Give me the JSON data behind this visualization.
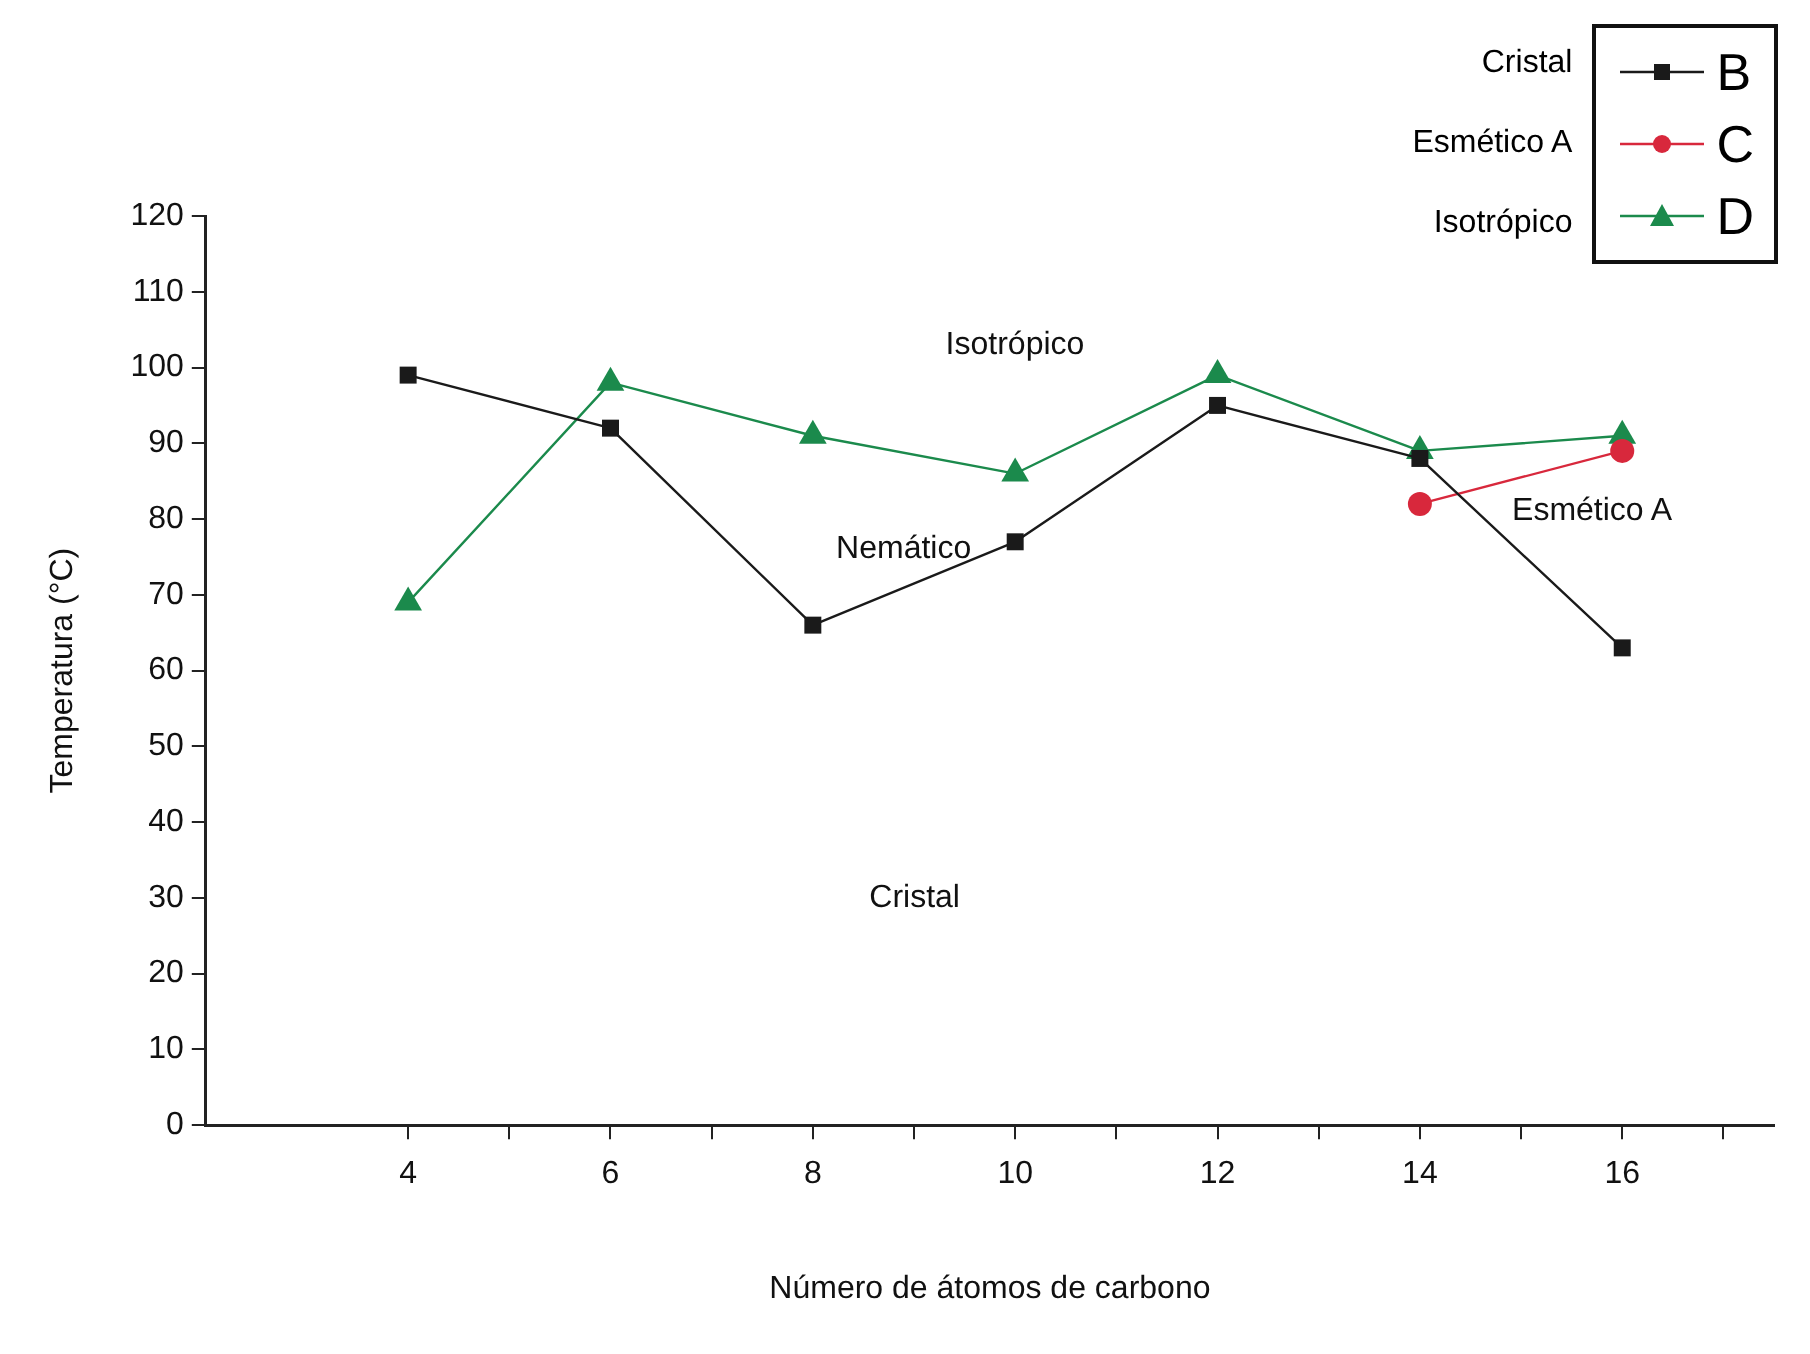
{
  "chart_data": {
    "type": "line",
    "xlabel": "Número de átomos de carbono",
    "ylabel": "Temperatura (°C)",
    "xlim": [
      2,
      17.5
    ],
    "xticks": [
      4,
      {
        "value": 5,
        "label": null
      },
      6,
      {
        "value": 7,
        "label": null
      },
      8,
      {
        "value": 9,
        "label": null
      },
      10,
      {
        "value": 11,
        "label": null
      },
      12,
      {
        "value": 13,
        "label": null
      },
      14,
      {
        "value": 15,
        "label": null
      },
      16,
      {
        "value": 17,
        "label": null
      }
    ],
    "ylim": [
      0,
      120
    ],
    "yticks": [
      0,
      10,
      20,
      30,
      40,
      50,
      60,
      70,
      80,
      90,
      100,
      110,
      120
    ],
    "legend": "top right",
    "series": [
      {
        "name": "B",
        "color": "#1a1a1a",
        "marker": "square",
        "x": [
          4,
          6,
          8,
          10,
          12,
          14,
          16
        ],
        "values": [
          99,
          92,
          66,
          77,
          95,
          88,
          63
        ]
      },
      {
        "name": "C",
        "color": "#d8283c",
        "marker": "circle",
        "x": [
          14,
          16
        ],
        "values": [
          82,
          89
        ]
      },
      {
        "name": "D",
        "color": "#1b8a4c",
        "marker": "triangle",
        "x": [
          4,
          6,
          8,
          10,
          12,
          14,
          16
        ],
        "values": [
          69,
          98,
          91,
          86,
          99,
          89,
          91
        ]
      }
    ],
    "annotations": [
      "Cristal",
      "Esmético A",
      "Isotrópico",
      "Isotrópico",
      "Nemático",
      "Cristal",
      "Esmético A"
    ]
  }
}
